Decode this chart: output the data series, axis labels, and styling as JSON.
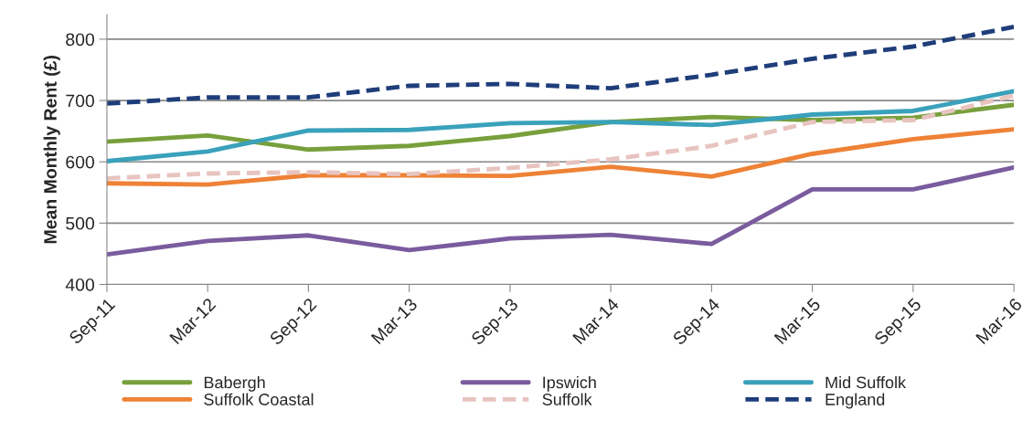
{
  "chart_data": {
    "type": "line",
    "ylabel": "Mean Monthly Rent (£)",
    "categories": [
      "Sep-11",
      "Mar-12",
      "Sep-12",
      "Mar-13",
      "Sep-13",
      "Mar-14",
      "Sep-14",
      "Mar-15",
      "Sep-15",
      "Mar-16"
    ],
    "series": [
      {
        "name": "Babergh",
        "color": "#77a03c",
        "values": [
          633,
          643,
          620,
          626,
          642,
          665,
          673,
          668,
          672,
          693
        ]
      },
      {
        "name": "Ipswich",
        "color": "#7a5c9e",
        "values": [
          449,
          471,
          480,
          456,
          475,
          481,
          466,
          555,
          555,
          591
        ]
      },
      {
        "name": "Mid Suffolk",
        "color": "#3aa1bb",
        "values": [
          601,
          617,
          651,
          652,
          663,
          665,
          660,
          677,
          683,
          715
        ]
      },
      {
        "name": "Suffolk Coastal",
        "color": "#ee8236",
        "values": [
          565,
          563,
          578,
          578,
          577,
          592,
          576,
          613,
          637,
          653
        ]
      },
      {
        "name": "Suffolk",
        "color": "#e8c4c0",
        "line_style": "dashed",
        "values": [
          573,
          581,
          583,
          580,
          590,
          604,
          626,
          665,
          668,
          708
        ]
      },
      {
        "name": "England",
        "color": "#1f3d7a",
        "line_style": "dashed",
        "values": [
          695,
          705,
          705,
          724,
          727,
          720,
          742,
          768,
          788,
          820
        ]
      }
    ],
    "ylim": [
      400,
      840
    ],
    "yticks": [
      400,
      500,
      600,
      700,
      800
    ],
    "grid": "y",
    "legend": "bottom",
    "line_style": "solid",
    "marker": "none"
  }
}
